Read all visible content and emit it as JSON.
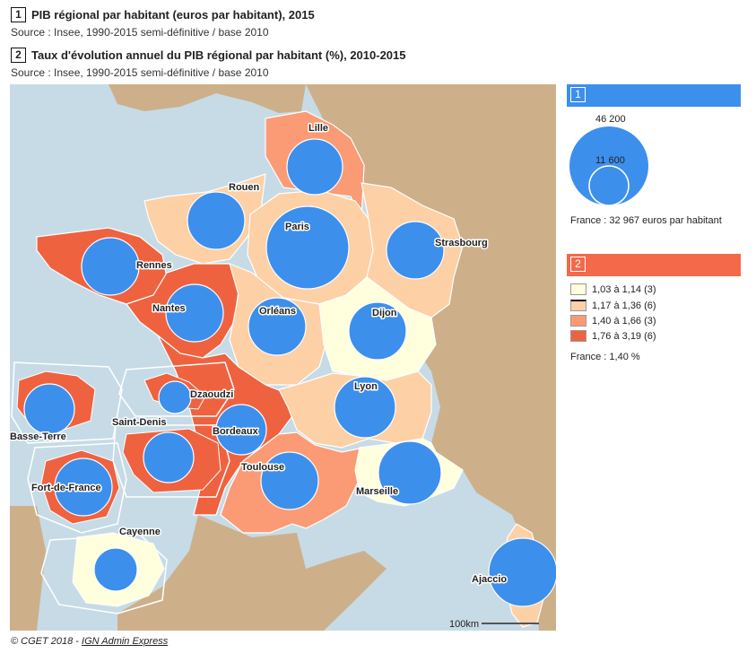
{
  "map1": {
    "num": "1",
    "title": "PIB régional par habitant (euros par habitant), 2015",
    "source": "Source : Insee, 1990-2015 semi-définitive / base 2010"
  },
  "map2": {
    "num": "2",
    "title": "Taux d'évolution annuel du PIB régional par habitant (%), 2010-2015",
    "source": "Source : Insee, 1990-2015 semi-définitive / base 2010"
  },
  "colors": {
    "sea": "#c6dbe6",
    "land": "#cdb08a",
    "circle": "#3d8fec",
    "c1": "#ffffdd",
    "c2": "#fdd0a6",
    "c3": "#fa9b75",
    "c4": "#ef6240",
    "bar1": "#3d8fec",
    "bar2": "#f3694a"
  },
  "legend1": {
    "num": "1",
    "big_value": "46 200",
    "small_value": "11 600",
    "france_note": "France : 32 967 euros par habitant"
  },
  "legend2": {
    "num": "2",
    "classes": [
      {
        "label": "1,03 à 1,14 (3)",
        "color": "#ffffdd"
      },
      {
        "label": "1,17 à 1,36 (6)",
        "color": "#fdd0a6"
      },
      {
        "label": "1,40 à 1,66 (3)",
        "color": "#fa9b75"
      },
      {
        "label": "1,76 à 3,19 (6)",
        "color": "#ef6240"
      }
    ],
    "france_note": "France : 1,40 %"
  },
  "map": {
    "scale_label": "100km",
    "city_labels": [
      "Lille",
      "Rouen",
      "Paris",
      "Strasbourg",
      "Rennes",
      "Nantes",
      "Orléans",
      "Dijon",
      "Lyon",
      "Bordeaux",
      "Toulouse",
      "Marseille",
      "Ajaccio",
      "Dzaoudzi",
      "Saint-Denis",
      "Basse-Terre",
      "Fort-de-France",
      "Cayenne"
    ]
  },
  "footer": {
    "credit": "© CGET 2018 - ",
    "link": "IGN Admin Express"
  }
}
